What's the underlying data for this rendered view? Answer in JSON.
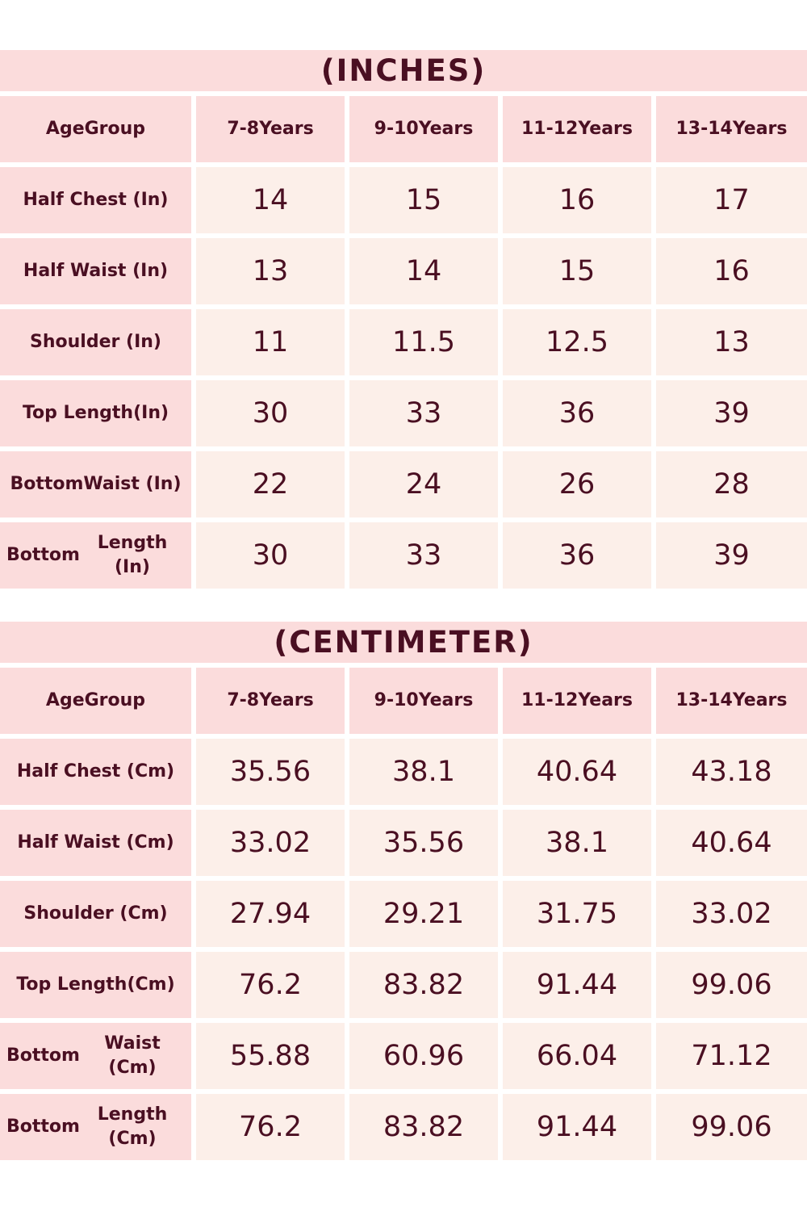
{
  "tables": [
    {
      "title": "(INCHES)",
      "header": [
        [
          "Age",
          "Group"
        ],
        [
          "7-8",
          "Years"
        ],
        [
          "9-10",
          "Years"
        ],
        [
          "11-12",
          "Years"
        ],
        [
          "13-14",
          "Years"
        ]
      ],
      "rows": [
        {
          "label": [
            "Half Chest (In)"
          ],
          "values": [
            "14",
            "15",
            "16",
            "17"
          ]
        },
        {
          "label": [
            "Half Waist (In)"
          ],
          "values": [
            "13",
            "14",
            "15",
            "16"
          ]
        },
        {
          "label": [
            "Shoulder (In)"
          ],
          "values": [
            "11",
            "11.5",
            "12.5",
            "13"
          ]
        },
        {
          "label": [
            "Top Length",
            "(In)"
          ],
          "values": [
            "30",
            "33",
            "36",
            "39"
          ]
        },
        {
          "label": [
            "Bottom",
            "Waist (In)"
          ],
          "values": [
            "22",
            "24",
            "26",
            "28"
          ]
        },
        {
          "label": [
            "Bottom",
            "Length (In)"
          ],
          "values": [
            "30",
            "33",
            "36",
            "39"
          ]
        }
      ]
    },
    {
      "title": "(CENTIMETER)",
      "header": [
        [
          "Age",
          "Group"
        ],
        [
          "7-8",
          "Years"
        ],
        [
          "9-10",
          "Years"
        ],
        [
          "11-12",
          "Years"
        ],
        [
          "13-14",
          "Years"
        ]
      ],
      "rows": [
        {
          "label": [
            "Half Chest (Cm)"
          ],
          "values": [
            "35.56",
            "38.1",
            "40.64",
            "43.18"
          ]
        },
        {
          "label": [
            "Half Waist (Cm)"
          ],
          "values": [
            "33.02",
            "35.56",
            "38.1",
            "40.64"
          ]
        },
        {
          "label": [
            "Shoulder (Cm)"
          ],
          "values": [
            "27.94",
            "29.21",
            "31.75",
            "33.02"
          ]
        },
        {
          "label": [
            "Top Length",
            "(Cm)"
          ],
          "values": [
            "76.2",
            "83.82",
            "91.44",
            "99.06"
          ]
        },
        {
          "label": [
            "Bottom",
            "Waist (Cm)"
          ],
          "values": [
            "55.88",
            "60.96",
            "66.04",
            "71.12"
          ]
        },
        {
          "label": [
            "Bottom",
            "Length (Cm)"
          ],
          "values": [
            "76.2",
            "83.82",
            "91.44",
            "99.06"
          ]
        }
      ]
    }
  ],
  "colors": {
    "text": "#4a0f22",
    "header_bg": "#fbdcdc",
    "value_bg": "#fcefe9"
  }
}
